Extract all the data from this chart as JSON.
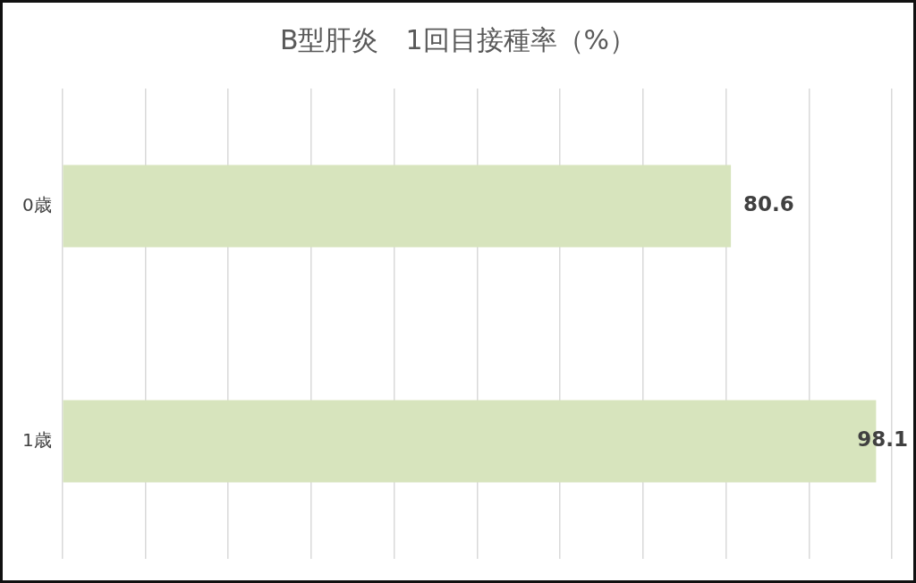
{
  "chart_data": {
    "type": "bar",
    "orientation": "horizontal",
    "title": "B型肝炎　1回目接種率（%）",
    "categories": [
      "0歳",
      "1歳"
    ],
    "values": [
      80.6,
      98.1
    ],
    "color": "#d7e4bd",
    "xlim": [
      0,
      100
    ],
    "xticks": [
      {
        "value": 0,
        "label": null
      },
      {
        "value": 10,
        "label": null
      },
      {
        "value": 20,
        "label": null
      },
      {
        "value": 30,
        "label": null
      },
      {
        "value": 40,
        "label": null
      },
      {
        "value": 50,
        "label": null
      },
      {
        "value": 60,
        "label": null
      },
      {
        "value": 70,
        "label": null
      },
      {
        "value": 80,
        "label": null
      },
      {
        "value": 90,
        "label": null
      },
      {
        "value": 100,
        "label": null
      }
    ],
    "grid": "x",
    "tick_labels": "y",
    "data_labels": true,
    "legend": false
  }
}
